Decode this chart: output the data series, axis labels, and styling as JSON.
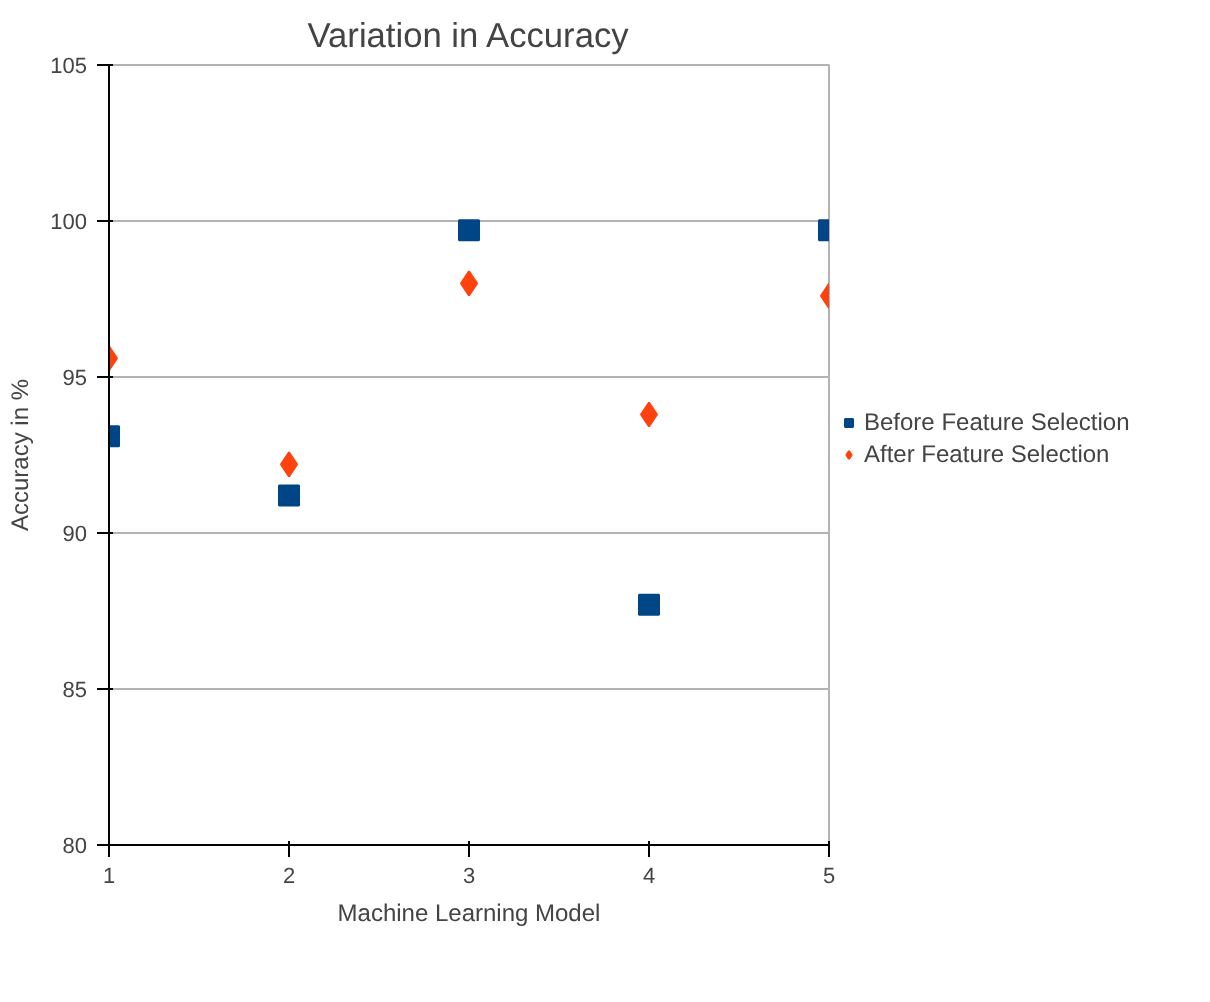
{
  "chart_data": {
    "type": "scatter",
    "title": "Variation in Accuracy",
    "xlabel": "Machine Learning Model",
    "ylabel": "Accuracy in %",
    "x": [
      1,
      2,
      3,
      4,
      5
    ],
    "xlim": [
      1,
      5
    ],
    "xticks": [
      1,
      2,
      3,
      4,
      5
    ],
    "ylim": [
      80,
      105
    ],
    "yticks": [
      80,
      85,
      90,
      95,
      100,
      105
    ],
    "grid": "y",
    "legend": "right",
    "series": [
      {
        "name": "Before Feature Selection",
        "color": "#004586",
        "marker": "square",
        "values": [
          93.1,
          91.2,
          99.7,
          87.7,
          99.7
        ]
      },
      {
        "name": "After Feature Selection",
        "color": "#ff420e",
        "marker": "diamond",
        "values": [
          95.6,
          92.2,
          98.0,
          93.8,
          97.6
        ]
      }
    ]
  }
}
